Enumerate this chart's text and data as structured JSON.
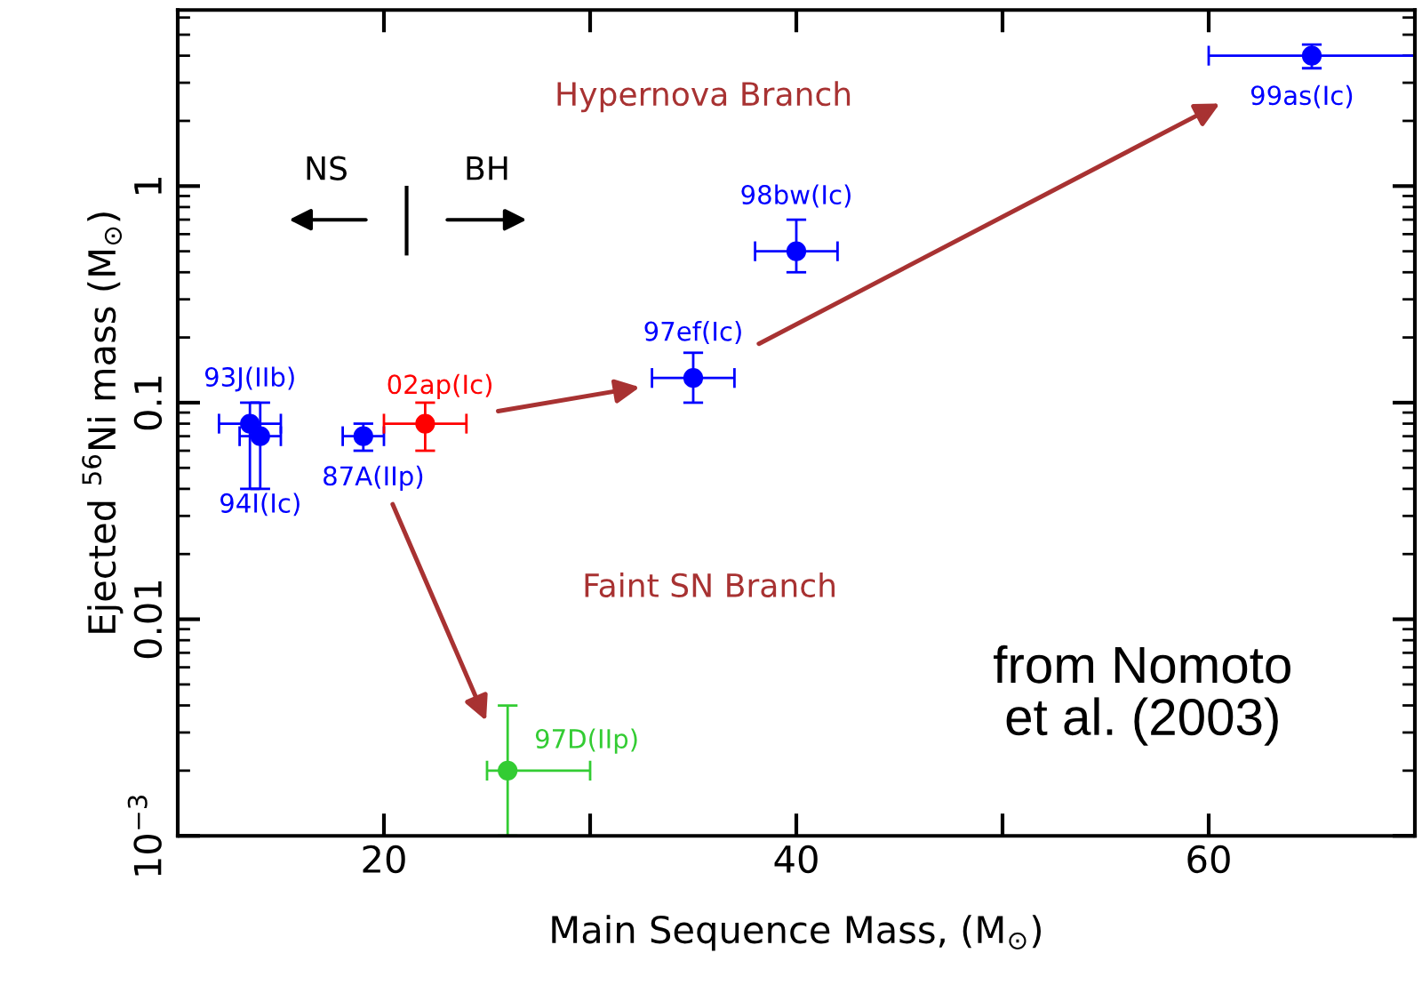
{
  "chart_data": {
    "type": "scatter",
    "xlabel": "Main Sequence Mass, (M$_{⊙}$)",
    "ylabel": "Ejected $^{56}$Ni mass (M$_{⊙}$)",
    "log": "y",
    "xlim": [
      10,
      70
    ],
    "ylim": [
      0.001,
      6.5
    ],
    "xticks": [
      20,
      {
        "value": 30,
        "label": null
      },
      40,
      {
        "value": 50,
        "label": null
      },
      60
    ],
    "yticks": [
      {
        "value": 0.001,
        "label": "10$^{−3}$"
      },
      0.01,
      0.1,
      1
    ],
    "grid": false,
    "marker": "circle",
    "series": [
      {
        "name": "93J(IIb)",
        "color": "#0000ff",
        "x": [
          13.5
        ],
        "values": [
          0.08
        ],
        "errors": [
          [
            0.04,
            0.1
          ]
        ],
        "xerrors": [
          [
            12,
            15
          ]
        ]
      },
      {
        "name": "94I(Ic)",
        "color": "#0000ff",
        "x": [
          14
        ],
        "values": [
          0.07
        ],
        "errors": [
          [
            0.04,
            0.1
          ]
        ],
        "xerrors": [
          [
            13,
            15
          ]
        ]
      },
      {
        "name": "87A(IIp)",
        "color": "#0000ff",
        "x": [
          19
        ],
        "values": [
          0.07
        ],
        "errors": [
          [
            0.06,
            0.08
          ]
        ],
        "xerrors": [
          [
            18,
            20
          ]
        ]
      },
      {
        "name": "02ap(Ic)",
        "color": "#ff0000",
        "x": [
          22
        ],
        "values": [
          0.08
        ],
        "errors": [
          [
            0.06,
            0.1
          ]
        ],
        "xerrors": [
          [
            20,
            24
          ]
        ]
      },
      {
        "name": "97D(IIp)",
        "color": "#33cc33",
        "x": [
          26
        ],
        "values": [
          0.002
        ],
        "errors": [
          [
            0.001,
            0.004
          ]
        ],
        "xerrors": [
          [
            25,
            30
          ]
        ]
      },
      {
        "name": "97ef(Ic)",
        "color": "#0000ff",
        "x": [
          35
        ],
        "values": [
          0.13
        ],
        "errors": [
          [
            0.1,
            0.17
          ]
        ],
        "xerrors": [
          [
            33,
            37
          ]
        ]
      },
      {
        "name": "98bw(Ic)",
        "color": "#0000ff",
        "x": [
          40
        ],
        "values": [
          0.5
        ],
        "errors": [
          [
            0.4,
            0.7
          ]
        ],
        "xerrors": [
          [
            38,
            42
          ]
        ]
      },
      {
        "name": "99as(Ic)",
        "color": "#0000ff",
        "x": [
          65
        ],
        "values": [
          4
        ],
        "errors": [
          [
            3.5,
            4.5
          ]
        ],
        "xerrors": [
          [
            60,
            70
          ]
        ]
      }
    ],
    "annotations": [
      "NS",
      "BH",
      "Hypernova Branch",
      "Faint SN Branch",
      "from Nomoto\net al. (2003)"
    ]
  }
}
